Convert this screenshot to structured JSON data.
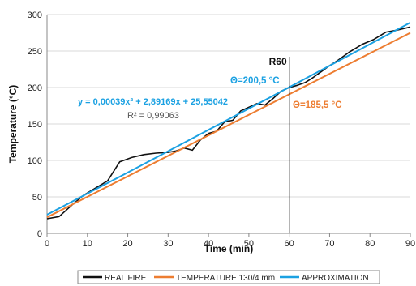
{
  "chart_data": {
    "type": "line",
    "xlabel": "Time (min)",
    "ylabel": "Temperature (°C)",
    "xlim": [
      0,
      90
    ],
    "ylim": [
      0,
      300
    ],
    "xticks": [
      0,
      10,
      20,
      30,
      40,
      50,
      60,
      70,
      80,
      90
    ],
    "yticks": [
      0,
      50,
      100,
      150,
      200,
      250,
      300
    ],
    "grid": "horizontal",
    "legend": "bottom",
    "series": [
      {
        "name": "REAL FIRE",
        "color": "#111111",
        "x": [
          0,
          3,
          6,
          9,
          12,
          15,
          18,
          21,
          24,
          27,
          30,
          32,
          34,
          36,
          38,
          40,
          42,
          44,
          46,
          48,
          50,
          52,
          54,
          56,
          58,
          60,
          62,
          64,
          66,
          68,
          70,
          72,
          75,
          78,
          81,
          84,
          87,
          90
        ],
        "y": [
          20,
          23,
          38,
          52,
          62,
          72,
          98,
          104,
          108,
          110,
          111,
          113,
          117,
          114,
          128,
          137,
          140,
          153,
          155,
          168,
          173,
          178,
          176,
          185,
          195,
          200,
          203,
          207,
          214,
          222,
          230,
          237,
          249,
          259,
          266,
          276,
          279,
          283
        ]
      },
      {
        "name": "TEMPERATURE 130/4 mm",
        "color": "#ED7D31",
        "x": [
          0,
          90
        ],
        "y": [
          22,
          275
        ]
      },
      {
        "name": "APPROXIMATION",
        "color": "#1BA1E2",
        "x": [
          0,
          10,
          20,
          30,
          40,
          50,
          60,
          70,
          80,
          90
        ],
        "y": [
          25.6,
          54.5,
          83.5,
          112.7,
          141.9,
          171.1,
          200.5,
          229.9,
          259.4,
          289.0
        ]
      }
    ],
    "marker": {
      "label": "R60",
      "x": 60
    },
    "annotations": {
      "equation": "y = 0,00039x² + 2,89169x + 25,55042",
      "r_squared": "R² = 0,99063",
      "theta_approx": "Θ=200,5 °C",
      "theta_temp": "Θ=185,5 °C"
    }
  }
}
